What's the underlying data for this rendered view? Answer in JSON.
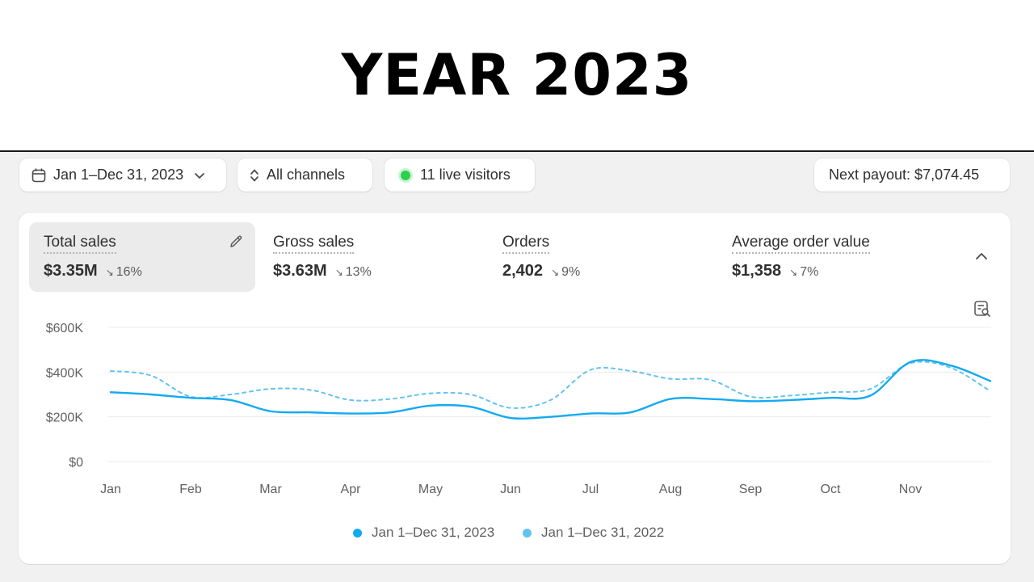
{
  "page": {
    "title": "YEAR 2023"
  },
  "toolbar": {
    "date_range": "Jan 1–Dec 31, 2023",
    "channels": "All channels",
    "live_visitors": "11 live visitors",
    "next_payout": "Next payout: $7,074.45"
  },
  "metrics": [
    {
      "label": "Total sales",
      "value": "$3.35M",
      "change": "16%",
      "direction": "down",
      "active": true
    },
    {
      "label": "Gross sales",
      "value": "$3.63M",
      "change": "13%",
      "direction": "down",
      "active": false
    },
    {
      "label": "Orders",
      "value": "2,402",
      "change": "9%",
      "direction": "down",
      "active": false
    },
    {
      "label": "Average order value",
      "value": "$1,358",
      "change": "7%",
      "direction": "down",
      "active": false
    }
  ],
  "icons": {
    "date": "calendar-icon",
    "channels": "sort-arrows-icon",
    "edit": "pencil-icon",
    "collapse": "chevron-up-icon",
    "inspect": "chart-inspect-icon"
  },
  "colors": {
    "current": "#13aaf0",
    "previous": "#63c3ef",
    "live": "#2bd14c"
  },
  "chart_data": {
    "type": "line",
    "title": "",
    "xlabel": "",
    "ylabel": "",
    "categories": [
      "Jan",
      "Feb",
      "Mar",
      "Apr",
      "May",
      "Jun",
      "Jul",
      "Aug",
      "Sep",
      "Oct",
      "Nov"
    ],
    "y_ticks": [
      "$600K",
      "$400K",
      "$200K",
      "$0"
    ],
    "ylim": [
      0,
      600000
    ],
    "grid": true,
    "legend_position": "bottom",
    "series": [
      {
        "name": "Jan 1–Dec 31, 2023",
        "style": "solid",
        "x": [
          1,
          1.5,
          2,
          2.5,
          3,
          3.5,
          4,
          4.5,
          5,
          5.5,
          6,
          6.5,
          7,
          7.5,
          8,
          8.5,
          9,
          9.5,
          10,
          10.5,
          11,
          11.5,
          12
        ],
        "values": [
          310000,
          300000,
          285000,
          275000,
          225000,
          220000,
          215000,
          220000,
          250000,
          245000,
          195000,
          200000,
          215000,
          220000,
          280000,
          280000,
          270000,
          275000,
          285000,
          295000,
          445000,
          430000,
          360000
        ]
      },
      {
        "name": "Jan 1–Dec 31, 2022",
        "style": "dashed",
        "x": [
          1,
          1.5,
          2,
          2.5,
          3,
          3.5,
          4,
          4.5,
          5,
          5.5,
          6,
          6.5,
          7,
          7.5,
          8,
          8.5,
          9,
          9.5,
          10,
          10.5,
          11,
          11.5,
          12
        ],
        "values": [
          405000,
          385000,
          290000,
          300000,
          325000,
          320000,
          275000,
          280000,
          305000,
          300000,
          240000,
          275000,
          410000,
          405000,
          370000,
          365000,
          290000,
          295000,
          310000,
          325000,
          440000,
          420000,
          315000
        ]
      }
    ]
  }
}
